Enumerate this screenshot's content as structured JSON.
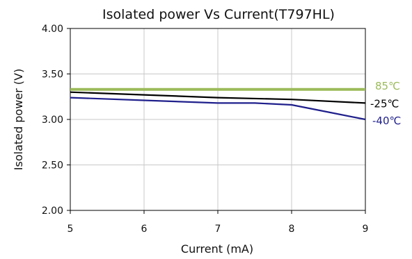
{
  "chart_data": {
    "type": "line",
    "title": "Isolated power Vs Current(T797HL)",
    "xlabel": "Current (mA)",
    "ylabel": "Isolated power (V)",
    "xlim": [
      5,
      9
    ],
    "ylim": [
      2.0,
      4.0
    ],
    "x_ticks": [
      "5",
      "6",
      "7",
      "8",
      "9"
    ],
    "y_ticks": [
      "2.00",
      "2.50",
      "3.00",
      "3.50",
      "4.00"
    ],
    "grid": true,
    "legend": "none",
    "series": [
      {
        "name": "85℃",
        "color": "#9bbb59",
        "x": [
          5,
          6,
          7,
          8,
          9
        ],
        "y": [
          3.33,
          3.33,
          3.33,
          3.33,
          3.33
        ]
      },
      {
        "name": "-25℃",
        "color": "#000000",
        "x": [
          5,
          6,
          7,
          8,
          9
        ],
        "y": [
          3.3,
          3.27,
          3.24,
          3.22,
          3.18
        ]
      },
      {
        "name": "-40℃",
        "color": "#1f1f8c",
        "x": [
          5,
          6,
          7,
          7.5,
          8,
          8.5,
          9
        ],
        "y": [
          3.24,
          3.21,
          3.18,
          3.18,
          3.16,
          3.08,
          3.0
        ]
      }
    ]
  }
}
